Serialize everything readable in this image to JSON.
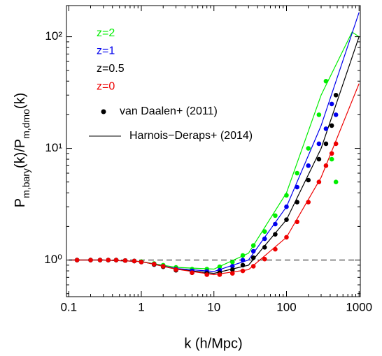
{
  "chart_data": {
    "type": "scatter",
    "xlabel": "k (h/Mpc)",
    "ylabel_parts": [
      "P",
      "m,bary",
      "(k)/P",
      "m,dmo",
      "(k)"
    ],
    "log_x": true,
    "log_y": true,
    "xlim": [
      0.093,
      1040
    ],
    "ylim": [
      0.47,
      190
    ],
    "xticks": [
      0.1,
      1,
      10,
      100,
      1000
    ],
    "yticks": [
      {
        "value": 1,
        "label": "10⁰"
      },
      {
        "value": 10,
        "label": "10¹"
      },
      {
        "value": 100,
        "label": "10²"
      }
    ],
    "reference_line": 1,
    "dataset_labels": [
      "van Daalen+ (2011)",
      "Harnois−Deraps+ (2014)"
    ],
    "x": [
      0.13,
      0.2,
      0.27,
      0.35,
      0.45,
      0.6,
      0.8,
      1,
      1.5,
      2,
      3,
      5,
      8,
      12,
      18,
      25,
      35,
      50,
      70,
      100,
      140,
      200,
      280,
      350,
      420,
      480
    ],
    "series": [
      {
        "name": "z=2",
        "color": "#00ee00",
        "values": [
          1,
          1,
          1,
          1,
          1,
          0.99,
          0.98,
          0.97,
          0.93,
          0.9,
          0.86,
          0.83,
          0.83,
          0.87,
          0.96,
          1.1,
          1.35,
          1.8,
          2.5,
          3.8,
          6,
          10,
          20,
          40,
          8,
          5
        ]
      },
      {
        "name": "z=1",
        "color": "#0000ee",
        "values": [
          1,
          1,
          1,
          1,
          1,
          0.99,
          0.98,
          0.96,
          0.92,
          0.88,
          0.83,
          0.8,
          0.79,
          0.81,
          0.88,
          1,
          1.2,
          1.55,
          2.1,
          3,
          4.5,
          7,
          11,
          15,
          25,
          20
        ]
      },
      {
        "name": "z=0.5",
        "color": "#000000",
        "values": [
          1,
          1,
          1,
          1,
          1,
          0.99,
          0.98,
          0.96,
          0.91,
          0.87,
          0.81,
          0.77,
          0.76,
          0.77,
          0.82,
          0.9,
          1.05,
          1.3,
          1.7,
          2.3,
          3.3,
          5.2,
          8,
          11,
          16,
          30
        ]
      },
      {
        "name": "z=0",
        "color": "#ee0000",
        "values": [
          1,
          1,
          1,
          1,
          1,
          0.99,
          0.98,
          0.96,
          0.92,
          0.88,
          0.82,
          0.77,
          0.74,
          0.74,
          0.76,
          0.8,
          0.88,
          1.02,
          1.25,
          1.6,
          2.2,
          3.3,
          5,
          7,
          9,
          11
        ]
      }
    ],
    "lines": [
      {
        "color": "#00ee00",
        "x": [
          0.1,
          0.3,
          1,
          3,
          10,
          30,
          100,
          300,
          800,
          1000
        ],
        "values": [
          1,
          1,
          0.97,
          0.86,
          0.83,
          1.15,
          4,
          30,
          110,
          100
        ]
      },
      {
        "color": "#0000ee",
        "x": [
          0.1,
          0.3,
          1,
          3,
          10,
          30,
          100,
          300,
          1000
        ],
        "values": [
          1,
          1,
          0.97,
          0.84,
          0.79,
          1,
          3,
          16,
          165
        ]
      },
      {
        "color": "#000000",
        "x": [
          0.1,
          0.3,
          1,
          3,
          10,
          30,
          100,
          300,
          1000
        ],
        "values": [
          1,
          1,
          0.97,
          0.83,
          0.76,
          0.9,
          2.3,
          10,
          100
        ]
      },
      {
        "color": "#ee0000",
        "x": [
          0.1,
          0.3,
          1,
          3,
          10,
          30,
          100,
          300,
          1000
        ],
        "values": [
          1,
          1,
          0.97,
          0.83,
          0.74,
          0.82,
          1.6,
          5.5,
          38
        ]
      }
    ]
  }
}
